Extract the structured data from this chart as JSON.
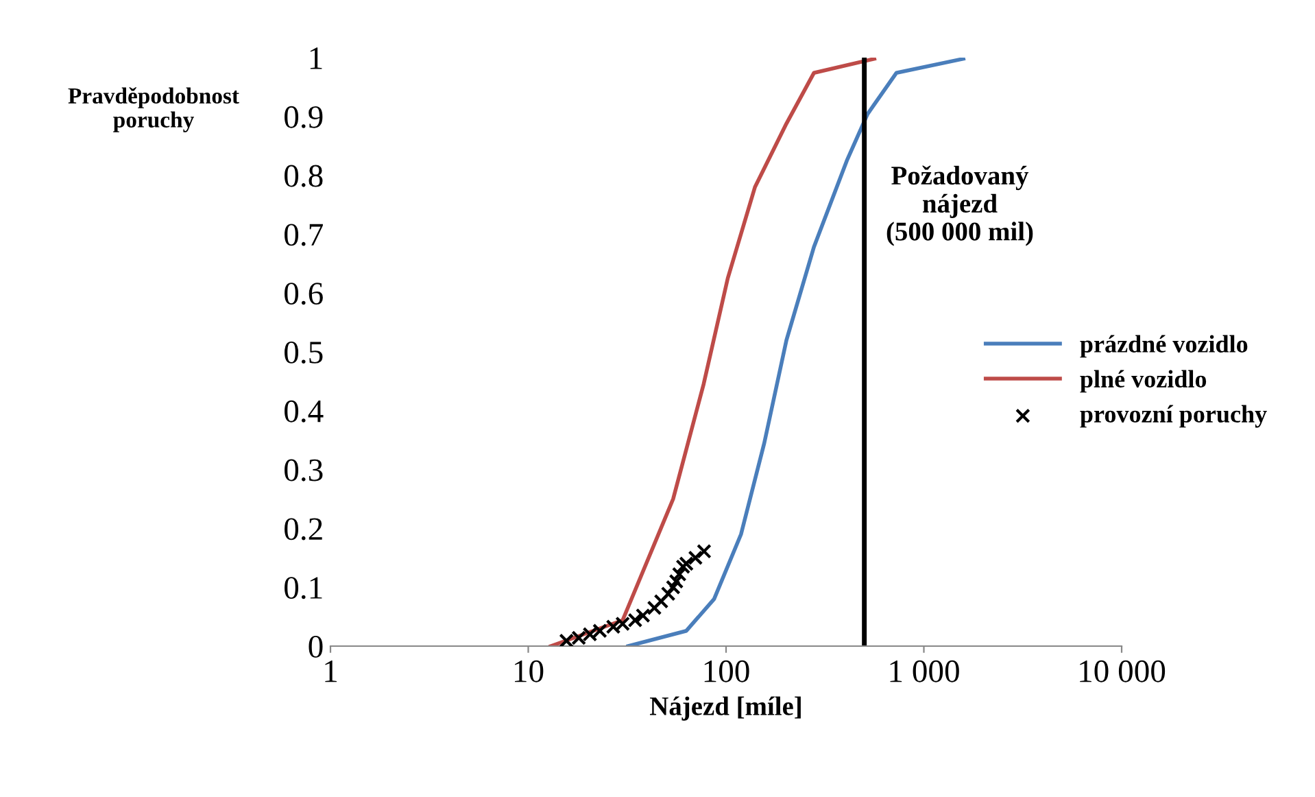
{
  "chart_data": {
    "type": "line",
    "xlabel": "Nájezd [míle]",
    "ylabel": "Pravděpodobnost\nporuchy",
    "log": "x",
    "series": [
      {
        "name": "prázdné vozidlo",
        "color": "#4a7ebb",
        "x": [
          32,
          63,
          87,
          119,
          156,
          202,
          278,
          408,
          519,
          726,
          1585
        ],
        "values": [
          0,
          0.026,
          0.08,
          0.19,
          0.345,
          0.52,
          0.678,
          0.825,
          0.904,
          0.974,
          0.998
        ]
      },
      {
        "name": "plné vozidlo",
        "color": "#be4b48",
        "x": [
          13,
          30,
          54,
          77,
          102,
          140,
          202,
          278,
          562
        ],
        "values": [
          0,
          0.044,
          0.25,
          0.445,
          0.625,
          0.78,
          0.888,
          0.974,
          0.998
        ]
      },
      {
        "name": "provozní poruchy",
        "type": "scatter",
        "marker": "cross",
        "color": "#000000",
        "x": [
          15.6,
          18,
          20.5,
          23,
          26.9,
          30,
          34.7,
          38,
          43.4,
          47,
          51,
          54,
          56,
          58,
          60.6,
          63,
          70,
          77.4
        ],
        "values": [
          0.009,
          0.014,
          0.02,
          0.026,
          0.033,
          0.038,
          0.044,
          0.052,
          0.065,
          0.076,
          0.089,
          0.1,
          0.11,
          0.122,
          0.135,
          0.14,
          0.15,
          0.161
        ]
      }
    ],
    "xlim": [
      1,
      10000
    ],
    "xticks": [
      1,
      10,
      100,
      {
        "value": 1000,
        "label": "1 000"
      },
      {
        "value": 10000,
        "label": "10 000"
      }
    ],
    "ylim": [
      0,
      1
    ],
    "yticks": [
      0,
      0.1,
      0.2,
      0.3,
      0.4,
      0.5,
      0.6,
      0.7,
      0.8,
      0.9,
      1
    ],
    "ref_lines": [
      {
        "axis": "x",
        "value": 500,
        "label": "Požadovaný\nnájezd\n(500 000 mil)",
        "color": "#000000"
      }
    ],
    "grid": false,
    "legend": "right"
  }
}
